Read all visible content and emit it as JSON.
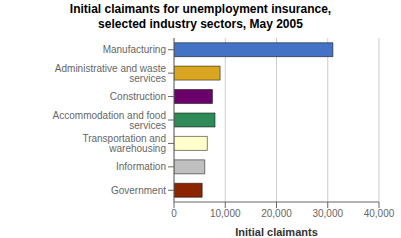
{
  "chart_data": {
    "type": "bar",
    "title": "Initial claimants for unemployment insurance,\nselected industry sectors, May 2005",
    "orientation": "horizontal",
    "categories": [
      "Government",
      "Information",
      "Transportation and warehousing",
      "Accommodation and food services",
      "Construction",
      "Administrative and waste services",
      "Manufacturing"
    ],
    "values": [
      5500,
      6000,
      6500,
      8000,
      7500,
      9000,
      31000
    ],
    "colors": [
      "#8B2500",
      "#C0C0C0",
      "#FFFFCC",
      "#2E8B57",
      "#6B006B",
      "#DAA520",
      "#4472C4"
    ],
    "xlabel": "Initial claimants",
    "xlim": [
      0,
      40000
    ],
    "xticks": [
      0,
      {
        "value": 10000,
        "label": "10,000"
      },
      {
        "value": 20000,
        "label": "20,000"
      },
      {
        "value": 30000,
        "label": "30,000"
      },
      {
        "value": 40000,
        "label": "40,000"
      }
    ],
    "grid": true
  }
}
